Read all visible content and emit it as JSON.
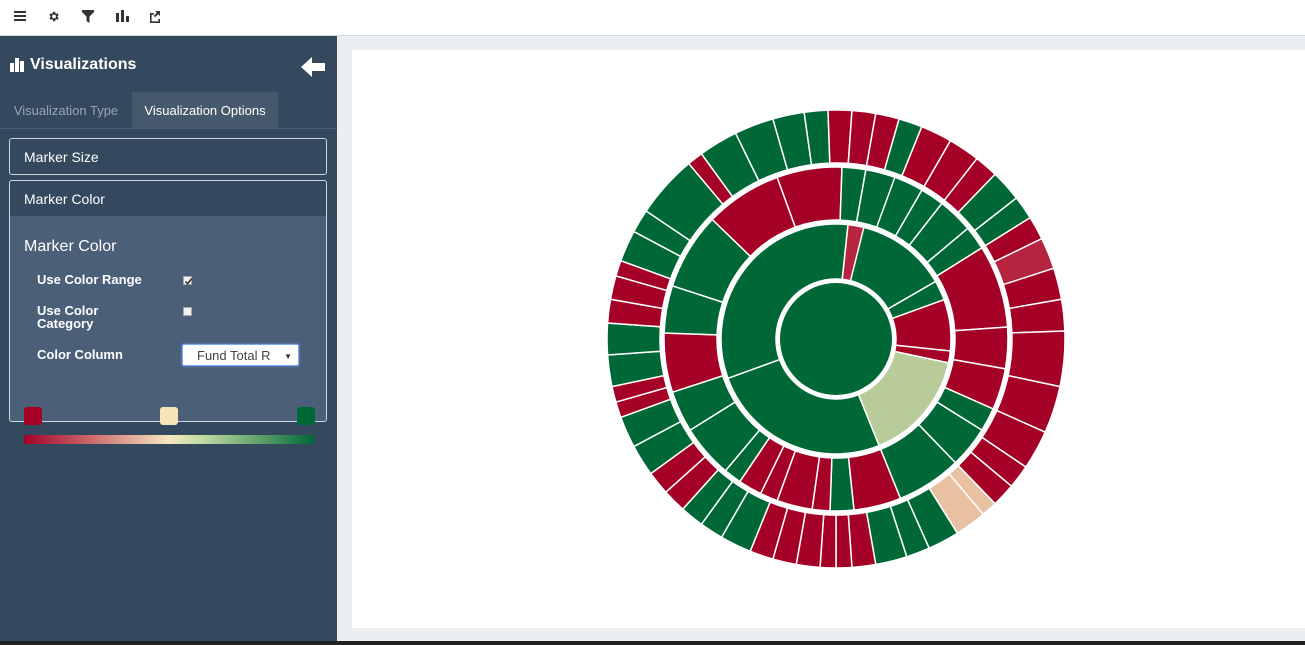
{
  "toolbar": {
    "buttons": [
      {
        "name": "menu-icon"
      },
      {
        "name": "gear-icon"
      },
      {
        "name": "filter-icon"
      },
      {
        "name": "bar-chart-icon"
      },
      {
        "name": "share-icon"
      }
    ]
  },
  "sidebar": {
    "title": "Visualizations",
    "title_icon": "bar-chart-icon",
    "back_icon": "arrow-left-icon",
    "tabs": [
      {
        "label": "Visualization Type",
        "active": false
      },
      {
        "label": "Visualization Options",
        "active": true
      }
    ],
    "sections": {
      "marker_size": "Marker Size",
      "marker_color": "Marker Color"
    },
    "marker_color_panel": {
      "title": "Marker Color",
      "use_color_range_label": "Use Color Range",
      "use_color_range_checked": true,
      "use_color_category_label": "Use Color Category",
      "use_color_category_checked": false,
      "color_column_label": "Color Column",
      "color_column_value": "Fund Total R",
      "colors": {
        "low": "#a50026",
        "mid": "#f6e3b8",
        "high": "#006837"
      }
    }
  },
  "colors": {
    "red": "#a50026",
    "green": "#006837",
    "light_green": "#b7cc99",
    "peach": "#e8c0a2",
    "crimson": "#b52540",
    "sidebar_bg": "#34495e",
    "panel_bg": "#4b5f79"
  }
}
